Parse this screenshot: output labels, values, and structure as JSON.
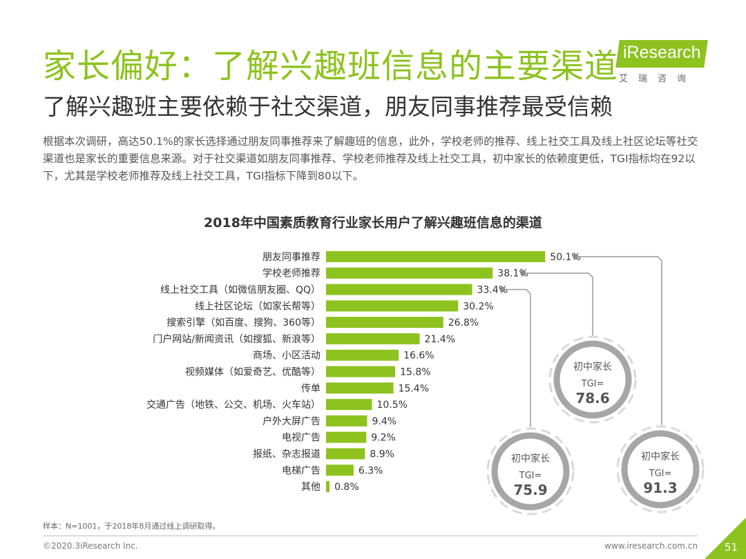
{
  "header": {
    "title": "家长偏好：了解兴趣班信息的主要渠道",
    "subtitle": "了解兴趣班主要依赖于社交渠道，朋友同事推荐最受信赖",
    "description": "根据本次调研，高达50.1%的家长选择通过朋友同事推荐来了解趣班的信息，此外，学校老师的推荐、线上社交工具及线上社区论坛等社交渠道也是家长的重要信息来源。对于社交渠道如朋友同事推荐、学校老师推荐及线上社交工具，初中家长的依赖度更低，TGI指标均在92以下，尤其是学校老师推荐及线上社交工具，TGI指标下降到80以下。"
  },
  "logo": {
    "text": "iResearch",
    "cn": "艾瑞咨询"
  },
  "colors": {
    "accent": "#8dc21f",
    "ring": "#a6a6a6",
    "ring_light": "#d9d9d9"
  },
  "chart_data": {
    "type": "bar",
    "orientation": "horizontal",
    "title": "2018年中国素质教育行业家长用户了解兴趣班信息的渠道",
    "categories": [
      "朋友同事推荐",
      "学校老师推荐",
      "线上社交工具（如微信朋友圈、QQ）",
      "线上社区论坛（如家长帮等）",
      "搜索引擎（如百度、搜狗、360等）",
      "门户网站/新闻资讯（如搜狐、新浪等）",
      "商场、小区活动",
      "视频媒体（如爱奇艺、优酷等）",
      "传单",
      "交通广告（地铁、公交、机场、火车站）",
      "户外大屏广告",
      "电视广告",
      "报纸、杂志报道",
      "电梯广告",
      "其他"
    ],
    "values": [
      50.1,
      38.1,
      33.4,
      30.2,
      26.8,
      21.4,
      16.6,
      15.8,
      15.4,
      10.5,
      9.4,
      9.2,
      8.9,
      6.3,
      0.8
    ],
    "value_labels": [
      "50.1%",
      "38.1%",
      "33.4%",
      "30.2%",
      "26.8%",
      "21.4%",
      "16.6%",
      "15.8%",
      "15.4%",
      "10.5%",
      "9.4%",
      "9.2%",
      "8.9%",
      "6.3%",
      "0.8%"
    ],
    "xlim": [
      0,
      60
    ],
    "callouts": [
      {
        "category": "学校老师推荐",
        "label": "初中家长",
        "tgi_label": "TGI=",
        "tgi_value": "78.6"
      },
      {
        "category": "线上社交工具（如微信朋友圈、QQ）",
        "label": "初中家长",
        "tgi_label": "TGI=",
        "tgi_value": "75.9"
      },
      {
        "category": "朋友同事推荐",
        "label": "初中家长",
        "tgi_label": "TGI=",
        "tgi_value": "91.3"
      }
    ]
  },
  "footer": {
    "footnote": "样本：N=1001，于2018年8月通过线上调研取得。",
    "copyright": "©2020.3iResearch Inc.",
    "website": "www.iresearch.com.cn",
    "page": "51"
  }
}
